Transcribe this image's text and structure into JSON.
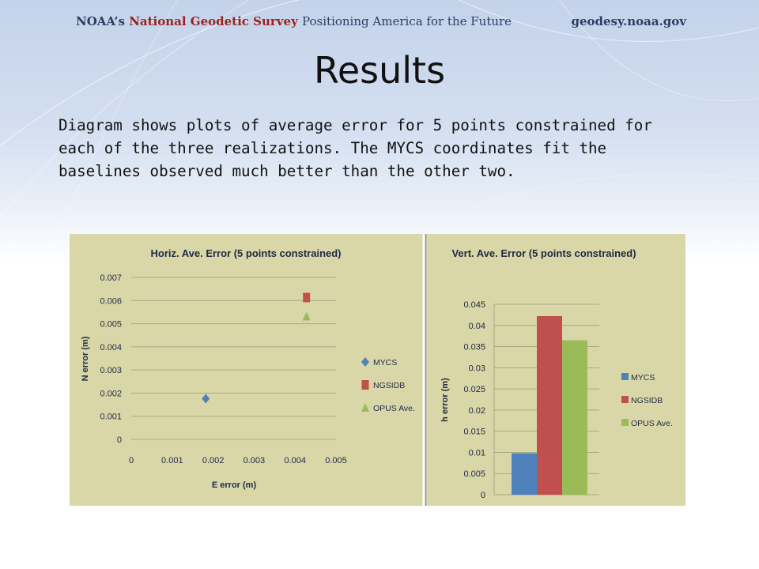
{
  "header": {
    "org_prefix": "NOAA’s",
    "org_name": "National Geodetic Survey",
    "tagline": "Positioning America for the Future",
    "website": "geodesy.noaa.gov"
  },
  "slide": {
    "title": "Results",
    "body": "Diagram shows plots of average error for 5 points constrained for each of the three realizations.  The MYCS coordinates fit the baselines observed much better than the other two."
  },
  "colors": {
    "MYCS": "#4f81bd",
    "NGSIDB": "#c0504d",
    "OPUS Ave.": "#9bbb59",
    "panel_bg": "#d9d7a8",
    "grid": "#a9aa86"
  },
  "chart_data": [
    {
      "type": "scatter",
      "title": "Horiz.  Ave. Error (5 points constrained)",
      "xlabel": "E error (m)",
      "ylabel": "N error (m)",
      "xlim": [
        0,
        0.005
      ],
      "ylim": [
        0,
        0.007
      ],
      "xticks": [
        "0",
        "0.001",
        "0.002",
        "0.003",
        "0.004",
        "0.005"
      ],
      "yticks": [
        "0",
        "0.001",
        "0.002",
        "0.003",
        "0.004",
        "0.005",
        "0.006",
        "0.007"
      ],
      "grid": true,
      "legend": "right",
      "series": [
        {
          "name": "MYCS",
          "marker": "diamond",
          "points": [
            [
              0.00182,
              0.00176
            ]
          ]
        },
        {
          "name": "NGSIDB",
          "marker": "square",
          "points": [
            [
              0.00428,
              0.00613
            ]
          ]
        },
        {
          "name": "OPUS Ave.",
          "marker": "triangle",
          "points": [
            [
              0.00428,
              0.00531
            ]
          ]
        }
      ]
    },
    {
      "type": "bar",
      "title": "Vert. Ave. Error (5 points constrained)",
      "ylabel": "h error (m)",
      "ylim": [
        0,
        0.045
      ],
      "yticks": [
        "0",
        "0.005",
        "0.01",
        "0.015",
        "0.02",
        "0.025",
        "0.03",
        "0.035",
        "0.04",
        "0.045"
      ],
      "grid": true,
      "legend": "right",
      "series": [
        {
          "name": "MYCS",
          "values": [
            0.0098
          ]
        },
        {
          "name": "NGSIDB",
          "values": [
            0.0422
          ]
        },
        {
          "name": "OPUS Ave.",
          "values": [
            0.0365
          ]
        }
      ]
    }
  ]
}
